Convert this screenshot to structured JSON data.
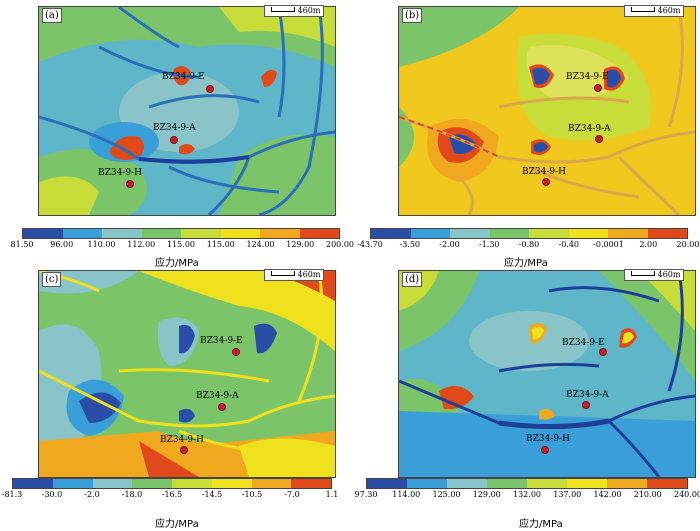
{
  "panels": [
    {
      "id": "a",
      "label": "(a)",
      "scale": "460m",
      "unit": "应力/MPa",
      "ticks": [
        "81.50",
        "96.00",
        "110.00",
        "112.00",
        "115.00",
        "115.00",
        "124.00",
        "129.00",
        "200.00"
      ],
      "colors": [
        "#2a4ea8",
        "#3a9fd8",
        "#89c4c8",
        "#7bc46a",
        "#c8dc3a",
        "#f0e11e",
        "#f0a81e",
        "#e04a1a"
      ],
      "wells": [
        {
          "name": "BZ34-9-E"
        },
        {
          "name": "BZ34-9-A"
        },
        {
          "name": "BZ34-9-H"
        }
      ]
    },
    {
      "id": "b",
      "label": "(b)",
      "scale": "460m",
      "unit": "应力/MPa",
      "ticks": [
        "-43.70",
        "-3.50",
        "-2.00",
        "-1.30",
        "-0.80",
        "-0.40",
        "-0.0001",
        "2.00",
        "20.00"
      ],
      "colors": [
        "#2a4ea8",
        "#3a9fd8",
        "#89c4c8",
        "#7bc46a",
        "#c8dc3a",
        "#f0e11e",
        "#f0a81e",
        "#e04a1a"
      ],
      "wells": [
        {
          "name": "BZ34-9-E"
        },
        {
          "name": "BZ34-9-A"
        },
        {
          "name": "BZ34-9-H"
        }
      ]
    },
    {
      "id": "c",
      "label": "(c)",
      "scale": "460m",
      "unit": "应力/MPa",
      "ticks": [
        "-81.3",
        "-30.0",
        "-2.0",
        "-18.0",
        "-16.5",
        "-14.5",
        "-10.5",
        "-7.0",
        "1.1"
      ],
      "colors": [
        "#2a4ea8",
        "#3a9fd8",
        "#89c4c8",
        "#7bc46a",
        "#c8dc3a",
        "#f0e11e",
        "#f0a81e",
        "#e04a1a"
      ],
      "wells": [
        {
          "name": "BZ34-9-E"
        },
        {
          "name": "BZ34-9-A"
        },
        {
          "name": "BZ34-9-H"
        }
      ]
    },
    {
      "id": "d",
      "label": "(d)",
      "scale": "460m",
      "unit": "应力/MPa",
      "ticks": [
        "97.30",
        "114.00",
        "125.00",
        "129.00",
        "132.00",
        "137.00",
        "142.00",
        "210.00",
        "240.00"
      ],
      "colors": [
        "#2a4ea8",
        "#3a9fd8",
        "#89c4c8",
        "#7bc46a",
        "#c8dc3a",
        "#f0e11e",
        "#f0a81e",
        "#e04a1a"
      ],
      "wells": [
        {
          "name": "BZ34-9-E"
        },
        {
          "name": "BZ34-9-A"
        },
        {
          "name": "BZ34-9-H"
        }
      ]
    }
  ]
}
